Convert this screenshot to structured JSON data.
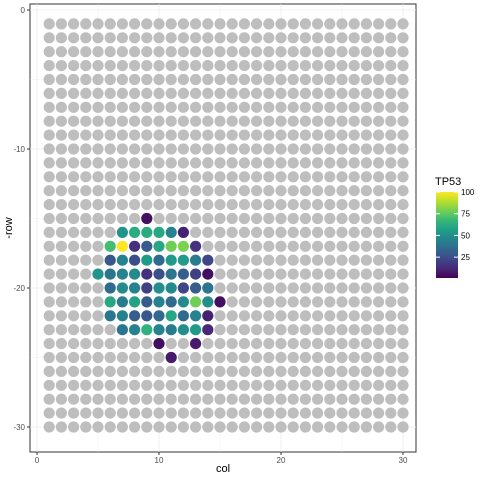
{
  "chart_data": {
    "type": "scatter",
    "title": "",
    "xlabel": "col",
    "ylabel": "-row",
    "xlim": [
      0,
      30
    ],
    "ylim": [
      -30,
      0
    ],
    "x_ticks": [
      "0",
      "10",
      "20",
      "30"
    ],
    "y_ticks": [
      "0",
      "-10",
      "-20",
      "-30"
    ],
    "grid": true,
    "grid_points": {
      "col_range": [
        1,
        30
      ],
      "row_range": [
        1,
        30
      ],
      "color": "#bebebe"
    },
    "legend": {
      "title": "TP53",
      "placement": "right",
      "min": 1,
      "max": 100,
      "ticks": [
        25,
        50,
        75,
        100
      ],
      "tick_labels": [
        "25",
        "50",
        "75",
        "100"
      ],
      "colormap": "viridis"
    },
    "points": [
      {
        "col": 9,
        "row": 15,
        "value": 5
      },
      {
        "col": 7,
        "row": 16,
        "value": 52
      },
      {
        "col": 8,
        "row": 16,
        "value": 62
      },
      {
        "col": 9,
        "row": 16,
        "value": 62
      },
      {
        "col": 10,
        "row": 16,
        "value": 60
      },
      {
        "col": 11,
        "row": 16,
        "value": 45
      },
      {
        "col": 12,
        "row": 16,
        "value": 10
      },
      {
        "col": 6,
        "row": 17,
        "value": 70
      },
      {
        "col": 7,
        "row": 17,
        "value": 100
      },
      {
        "col": 8,
        "row": 17,
        "value": 15
      },
      {
        "col": 9,
        "row": 17,
        "value": 30
      },
      {
        "col": 10,
        "row": 17,
        "value": 60
      },
      {
        "col": 11,
        "row": 17,
        "value": 78
      },
      {
        "col": 12,
        "row": 17,
        "value": 80
      },
      {
        "col": 13,
        "row": 17,
        "value": 15
      },
      {
        "col": 6,
        "row": 18,
        "value": 28
      },
      {
        "col": 7,
        "row": 18,
        "value": 45
      },
      {
        "col": 8,
        "row": 18,
        "value": 25
      },
      {
        "col": 9,
        "row": 18,
        "value": 55
      },
      {
        "col": 10,
        "row": 18,
        "value": 35
      },
      {
        "col": 11,
        "row": 18,
        "value": 55
      },
      {
        "col": 12,
        "row": 18,
        "value": 55
      },
      {
        "col": 13,
        "row": 18,
        "value": 42
      },
      {
        "col": 14,
        "row": 18,
        "value": 22
      },
      {
        "col": 5,
        "row": 19,
        "value": 52
      },
      {
        "col": 6,
        "row": 19,
        "value": 40
      },
      {
        "col": 7,
        "row": 19,
        "value": 45
      },
      {
        "col": 8,
        "row": 19,
        "value": 48
      },
      {
        "col": 9,
        "row": 19,
        "value": 15
      },
      {
        "col": 10,
        "row": 19,
        "value": 25
      },
      {
        "col": 11,
        "row": 19,
        "value": 40
      },
      {
        "col": 12,
        "row": 19,
        "value": 30
      },
      {
        "col": 13,
        "row": 19,
        "value": 20
      },
      {
        "col": 14,
        "row": 19,
        "value": 5
      },
      {
        "col": 6,
        "row": 20,
        "value": 35
      },
      {
        "col": 7,
        "row": 20,
        "value": 48
      },
      {
        "col": 8,
        "row": 20,
        "value": 45
      },
      {
        "col": 9,
        "row": 20,
        "value": 20
      },
      {
        "col": 10,
        "row": 20,
        "value": 50
      },
      {
        "col": 11,
        "row": 20,
        "value": 48
      },
      {
        "col": 12,
        "row": 20,
        "value": 22
      },
      {
        "col": 13,
        "row": 20,
        "value": 30
      },
      {
        "col": 14,
        "row": 20,
        "value": 40
      },
      {
        "col": 6,
        "row": 21,
        "value": 60
      },
      {
        "col": 7,
        "row": 21,
        "value": 42
      },
      {
        "col": 8,
        "row": 21,
        "value": 58
      },
      {
        "col": 9,
        "row": 21,
        "value": 30
      },
      {
        "col": 10,
        "row": 21,
        "value": 45
      },
      {
        "col": 11,
        "row": 21,
        "value": 35
      },
      {
        "col": 12,
        "row": 21,
        "value": 48
      },
      {
        "col": 13,
        "row": 21,
        "value": 78
      },
      {
        "col": 14,
        "row": 21,
        "value": 50
      },
      {
        "col": 15,
        "row": 21,
        "value": 5
      },
      {
        "col": 6,
        "row": 22,
        "value": 40
      },
      {
        "col": 7,
        "row": 22,
        "value": 45
      },
      {
        "col": 8,
        "row": 22,
        "value": 30
      },
      {
        "col": 9,
        "row": 22,
        "value": 28
      },
      {
        "col": 10,
        "row": 22,
        "value": 35
      },
      {
        "col": 11,
        "row": 22,
        "value": 60
      },
      {
        "col": 12,
        "row": 22,
        "value": 35
      },
      {
        "col": 13,
        "row": 22,
        "value": 45
      },
      {
        "col": 14,
        "row": 22,
        "value": 10
      },
      {
        "col": 7,
        "row": 23,
        "value": 40
      },
      {
        "col": 8,
        "row": 23,
        "value": 45
      },
      {
        "col": 9,
        "row": 23,
        "value": 65
      },
      {
        "col": 10,
        "row": 23,
        "value": 45
      },
      {
        "col": 11,
        "row": 23,
        "value": 42
      },
      {
        "col": 12,
        "row": 23,
        "value": 50
      },
      {
        "col": 13,
        "row": 23,
        "value": 55
      },
      {
        "col": 14,
        "row": 23,
        "value": 12
      },
      {
        "col": 10,
        "row": 24,
        "value": 5
      },
      {
        "col": 13,
        "row": 24,
        "value": 8
      },
      {
        "col": 11,
        "row": 25,
        "value": 8
      }
    ]
  }
}
